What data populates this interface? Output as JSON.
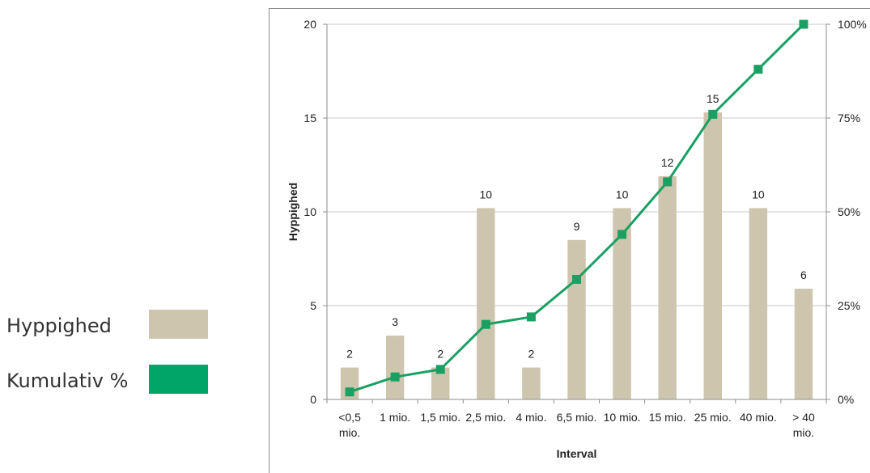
{
  "legend": {
    "items": [
      {
        "label": "Hyppighed",
        "color": "#cdc5ad"
      },
      {
        "label": "Kumulativ %",
        "color": "#00a567"
      }
    ]
  },
  "chart_data": {
    "type": "bar",
    "categories": [
      [
        "<0,5",
        "mio."
      ],
      [
        "1 mio."
      ],
      [
        "1,5 mio."
      ],
      [
        "2,5 mio."
      ],
      [
        "4 mio."
      ],
      [
        "6,5 mio."
      ],
      [
        "10 mio."
      ],
      [
        "15 mio."
      ],
      [
        "25 mio."
      ],
      [
        "40 mio."
      ],
      [
        "> 40",
        "mio."
      ]
    ],
    "series": [
      {
        "name": "Hyppighed",
        "type": "bar",
        "axis": "left",
        "color": "#cdc5ad",
        "values": [
          1.7,
          3.4,
          1.7,
          10.2,
          1.7,
          8.5,
          10.2,
          11.9,
          15.3,
          10.2,
          5.9
        ],
        "labels": [
          "2",
          "3",
          "2",
          "10",
          "2",
          "9",
          "10",
          "12",
          "15",
          "10",
          "6"
        ]
      },
      {
        "name": "Kumulativ %",
        "type": "line",
        "axis": "right",
        "color": "#19a062",
        "values": [
          2,
          6,
          8,
          20,
          22,
          32,
          44,
          58,
          76,
          88,
          100
        ]
      }
    ],
    "xlabel": "Interval",
    "ylabel": "Hyppighed",
    "ylim": [
      0,
      20
    ],
    "yticks": [
      "0",
      "5",
      "10",
      "15",
      "20"
    ],
    "y2lim": [
      0,
      100
    ],
    "y2ticks": [
      "0%",
      "25%",
      "50%",
      "75%",
      "100%"
    ],
    "grid": true
  }
}
